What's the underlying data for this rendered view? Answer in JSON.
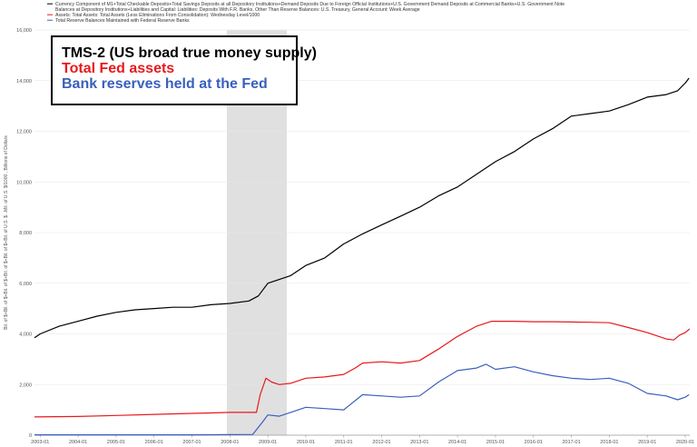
{
  "chart_data": {
    "type": "line",
    "ylabel": "Bil. of $+Bil. of $+Bil. of $+Bil. of $+Bil. of $+Bil. of U.S. $...Mil. of U.S. $/1000 , Billions of Dollars",
    "ylim": [
      0,
      16000
    ],
    "y_ticks": [
      0,
      2000,
      4000,
      6000,
      8000,
      10000,
      12000,
      14000,
      16000
    ],
    "y_tick_labels": [
      "0",
      "2,000",
      "4,000",
      "6,000",
      "8,000",
      "10,000",
      "12,000",
      "14,000",
      "16,000"
    ],
    "xlim": [
      2002.85,
      2020.12
    ],
    "x_ticks": [
      2003,
      2004,
      2005,
      2006,
      2007,
      2008,
      2009,
      2010,
      2011,
      2012,
      2013,
      2014,
      2015,
      2016,
      2017,
      2018,
      2019,
      2020
    ],
    "x_tick_labels": [
      "2003-01",
      "2004-01",
      "2005-01",
      "2006-01",
      "2007-01",
      "2008-01",
      "2009-01",
      "2010-01",
      "2011-01",
      "2012-01",
      "2013-01",
      "2014-01",
      "2015-01",
      "2016-01",
      "2017-01",
      "2018-01",
      "2019-01",
      "2020-01"
    ],
    "recession": [
      2007.92,
      2009.5
    ],
    "grid": true,
    "legend_position": "top-left",
    "series": [
      {
        "name": "Currency Component of M1+Total Checkable Deposits+Total Savings Deposits at all Depository Institutions+Demand Deposits Due to Foreign Official Institutions+U.S. Government Demand Deposits at Commercial Banks+U.S. Government Note Balances at Depository Institutions+Liabilities and Capital: Liabilities: Deposits With F.R. Banks, Other Than Reserve Balances: U.S. Treasury, General Account: Week Average",
        "color": "#000000",
        "x": [
          2002.85,
          2003.0,
          2003.5,
          2004.0,
          2004.5,
          2005.0,
          2005.5,
          2006.0,
          2006.5,
          2007.0,
          2007.5,
          2008.0,
          2008.5,
          2008.75,
          2009.0,
          2009.3,
          2009.6,
          2010.0,
          2010.5,
          2011.0,
          2011.5,
          2012.0,
          2012.5,
          2013.0,
          2013.5,
          2014.0,
          2014.5,
          2015.0,
          2015.5,
          2016.0,
          2016.5,
          2017.0,
          2017.5,
          2018.0,
          2018.5,
          2019.0,
          2019.5,
          2019.8,
          2020.0,
          2020.1
        ],
        "y": [
          3850,
          4000,
          4300,
          4500,
          4700,
          4850,
          4950,
          5000,
          5050,
          5050,
          5150,
          5200,
          5300,
          5500,
          6000,
          6150,
          6300,
          6700,
          7000,
          7550,
          7950,
          8300,
          8650,
          9000,
          9450,
          9800,
          10300,
          10800,
          11200,
          11700,
          12100,
          12600,
          12700,
          12800,
          13050,
          13350,
          13450,
          13600,
          13900,
          14100
        ]
      },
      {
        "name": "Assets: Total Assets: Total Assets (Less Eliminations From Consolidation): Wednesday Level/1000",
        "color": "#e8191c",
        "x": [
          2002.85,
          2004.0,
          2005.0,
          2006.0,
          2007.0,
          2007.5,
          2008.0,
          2008.7,
          2008.8,
          2008.95,
          2009.1,
          2009.3,
          2009.6,
          2010.0,
          2010.5,
          2011.0,
          2011.3,
          2011.5,
          2012.0,
          2012.5,
          2013.0,
          2013.5,
          2014.0,
          2014.5,
          2014.9,
          2015.5,
          2016.0,
          2016.5,
          2017.0,
          2017.5,
          2018.0,
          2018.5,
          2019.0,
          2019.5,
          2019.7,
          2019.85,
          2020.0,
          2020.12
        ],
        "y": [
          720,
          740,
          780,
          820,
          860,
          880,
          900,
          900,
          1600,
          2250,
          2100,
          2000,
          2050,
          2250,
          2300,
          2400,
          2650,
          2850,
          2900,
          2850,
          2950,
          3400,
          3900,
          4300,
          4500,
          4500,
          4480,
          4480,
          4470,
          4460,
          4440,
          4250,
          4050,
          3800,
          3760,
          3950,
          4050,
          4200
        ]
      },
      {
        "name": "Total Reserve Balances Maintained with Federal Reserve Banks",
        "color": "#3a5fbd",
        "x": [
          2002.85,
          2005.0,
          2007.0,
          2008.0,
          2008.6,
          2008.85,
          2009.0,
          2009.3,
          2009.6,
          2010.0,
          2010.5,
          2011.0,
          2011.5,
          2012.0,
          2012.5,
          2013.0,
          2013.5,
          2014.0,
          2014.5,
          2014.75,
          2015.0,
          2015.5,
          2016.0,
          2016.5,
          2017.0,
          2017.5,
          2018.0,
          2018.5,
          2019.0,
          2019.5,
          2019.8,
          2020.0,
          2020.1
        ],
        "y": [
          15,
          15,
          15,
          20,
          30,
          500,
          800,
          750,
          900,
          1100,
          1050,
          1000,
          1600,
          1550,
          1500,
          1550,
          2100,
          2550,
          2650,
          2800,
          2600,
          2700,
          2500,
          2350,
          2250,
          2200,
          2250,
          2050,
          1650,
          1550,
          1400,
          1500,
          1600
        ]
      }
    ]
  },
  "annotation": {
    "line1": "TMS-2 (US broad true money supply)",
    "line1_color": "#000000",
    "line2": "Total Fed assets",
    "line2_color": "#e8191c",
    "line3": "Bank reserves held at the Fed",
    "line3_color": "#3a5fbd"
  }
}
